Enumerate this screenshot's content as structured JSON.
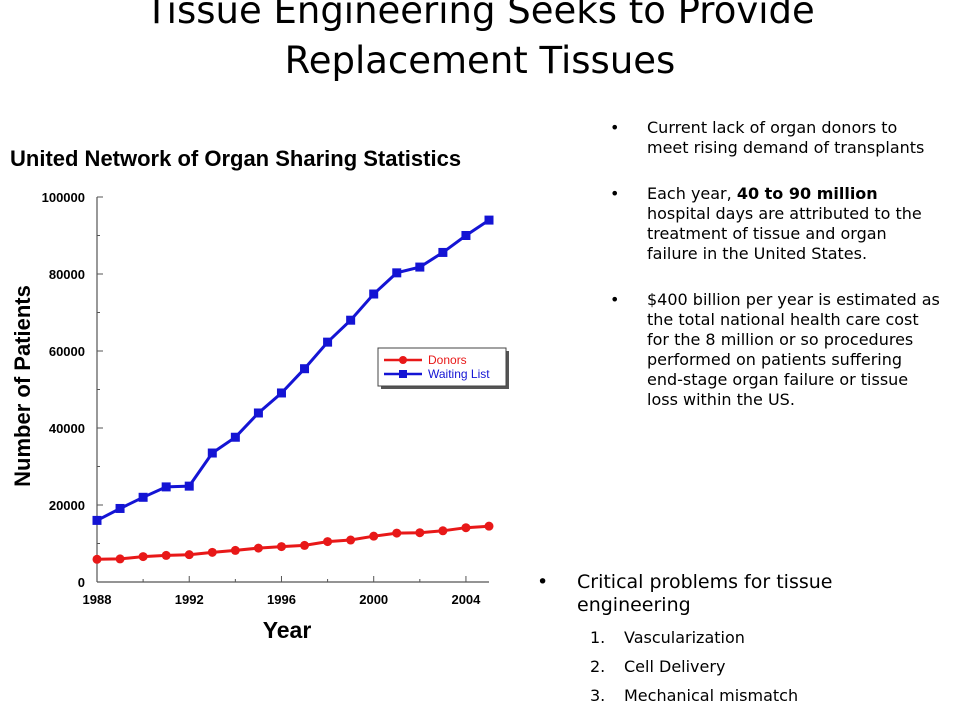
{
  "title": {
    "line1": "Tissue Engineering Seeks to Provide",
    "line2": "Replacement Tissues"
  },
  "bullets": [
    {
      "text": "Current lack of organ donors to meet rising demand of transplants"
    },
    {
      "pre": "Each year, ",
      "bold": "40 to 90 million",
      "post": " hospital days are attributed to the treatment of tissue and organ failure in the United States."
    },
    {
      "text": "$400 billion per year is estimated as the total national health care cost for the 8 million or so procedures performed on patients suffering end-stage organ failure or tissue loss within the US."
    }
  ],
  "problems": {
    "heading": "Critical problems for tissue engineering",
    "items": [
      {
        "num": "1.",
        "text": "Vascularization"
      },
      {
        "num": "2.",
        "text": "Cell Delivery"
      },
      {
        "num": "3.",
        "text": "Mechanical mismatch"
      }
    ]
  },
  "chart_data": {
    "type": "line",
    "title": "United Network of Organ Sharing Statistics",
    "xlabel": "Year",
    "ylabel": "Number of Patients",
    "xlim": [
      1988,
      2005
    ],
    "ylim": [
      0,
      100000
    ],
    "x_ticks": [
      1988,
      1992,
      1996,
      2000,
      2004
    ],
    "y_ticks": [
      0,
      20000,
      40000,
      60000,
      80000,
      100000
    ],
    "legend_position": "center-right",
    "x": [
      1988,
      1989,
      1990,
      1991,
      1992,
      1993,
      1994,
      1995,
      1996,
      1997,
      1998,
      1999,
      2000,
      2001,
      2002,
      2003,
      2004,
      2005
    ],
    "series": [
      {
        "name": "Donors",
        "color": "#e81818",
        "marker": "circle",
        "values": [
          5900,
          6000,
          6600,
          6900,
          7100,
          7700,
          8200,
          8800,
          9200,
          9500,
          10500,
          10900,
          11900,
          12700,
          12800,
          13300,
          14100,
          14500
        ]
      },
      {
        "name": "Waiting List",
        "color": "#1414d4",
        "marker": "square",
        "values": [
          16000,
          19100,
          22000,
          24700,
          24900,
          33500,
          37600,
          43900,
          49100,
          55400,
          62300,
          68000,
          74800,
          80300,
          81800,
          85600,
          90000,
          94000
        ]
      }
    ]
  }
}
